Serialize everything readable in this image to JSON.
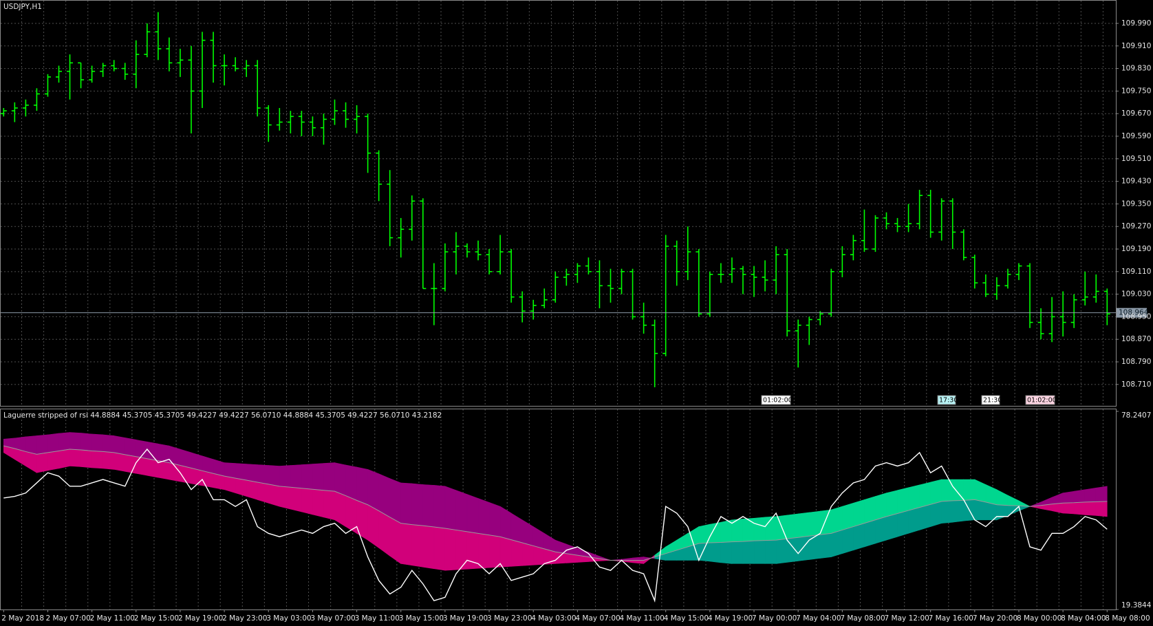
{
  "chart_data": [
    {
      "type": "ohlc",
      "title": "USDJPY,H1",
      "categories": [
        "2 May 2018",
        null,
        null,
        null,
        "2 May 07:00",
        null,
        null,
        null,
        "2 May 11:00",
        null,
        null,
        null,
        "2 May 15:00",
        null,
        null,
        null,
        "2 May 19:00",
        null,
        null,
        null,
        "2 May 23:00",
        null,
        null,
        null,
        "3 May 03:00",
        null,
        null,
        null,
        "3 May 07:00",
        null,
        null,
        null,
        "3 May 11:00",
        null,
        null,
        null,
        "3 May 15:00",
        null,
        null,
        null,
        "3 May 19:00",
        null,
        null,
        null,
        "3 May 23:00",
        null,
        null,
        null,
        "4 May 03:00",
        null,
        null,
        null,
        "4 May 07:00",
        null,
        null,
        null,
        "4 May 11:00",
        null,
        null,
        null,
        "4 May 15:00",
        null,
        null,
        null,
        "4 May 19:00",
        null,
        null,
        null,
        "7 May 00:00",
        null,
        null,
        null,
        "7 May 04:00",
        null,
        null,
        null,
        "7 May 08:00",
        null,
        null,
        null,
        "7 May 12:00",
        null,
        null,
        null,
        "7 May 16:00",
        null,
        null,
        null,
        "7 May 20:00",
        null,
        null,
        null,
        "8 May 00:00",
        null,
        null,
        null,
        "8 May 04:00",
        null,
        null,
        null,
        "8 May 08:00"
      ],
      "open": [
        109.67,
        109.68,
        109.69,
        109.7,
        109.74,
        109.8,
        109.82,
        109.85,
        109.79,
        109.82,
        109.84,
        109.83,
        109.81,
        109.88,
        109.96,
        109.9,
        109.85,
        109.86,
        109.75,
        109.93,
        109.84,
        109.84,
        109.83,
        109.84,
        109.69,
        109.63,
        109.64,
        109.66,
        109.64,
        109.62,
        109.65,
        109.68,
        109.65,
        109.66,
        109.53,
        109.42,
        109.23,
        109.26,
        109.36,
        109.05,
        109.05,
        109.18,
        109.2,
        109.18,
        109.17,
        109.11,
        109.18,
        109.02,
        108.97,
        108.99,
        109.01,
        109.09,
        109.1,
        109.13,
        109.11,
        109.06,
        109.05,
        109.11,
        108.95,
        108.92,
        108.82,
        109.2,
        109.11,
        109.18,
        108.96,
        109.1,
        109.1,
        109.12,
        109.1,
        109.09,
        109.08,
        109.17,
        108.9,
        108.92,
        108.94,
        108.96,
        109.11,
        109.17,
        109.22,
        109.19,
        109.3,
        109.28,
        109.27,
        109.28,
        109.38,
        109.25,
        109.36,
        109.25,
        109.16,
        109.07,
        109.03,
        109.06,
        109.1,
        109.13,
        108.93,
        108.89,
        108.95,
        108.93,
        109.01,
        109.02,
        109.04
      ],
      "high": [
        109.69,
        109.71,
        109.72,
        109.76,
        109.81,
        109.84,
        109.88,
        109.85,
        109.84,
        109.85,
        109.86,
        109.85,
        109.93,
        109.99,
        110.03,
        109.94,
        109.9,
        109.91,
        109.96,
        109.96,
        109.88,
        109.87,
        109.86,
        109.86,
        109.7,
        109.69,
        109.68,
        109.68,
        109.66,
        109.67,
        109.72,
        109.71,
        109.7,
        109.67,
        109.54,
        109.47,
        109.3,
        109.38,
        109.37,
        109.14,
        109.21,
        109.25,
        109.21,
        109.22,
        109.19,
        109.24,
        109.19,
        109.04,
        109.01,
        109.05,
        109.11,
        109.12,
        109.14,
        109.16,
        109.15,
        109.12,
        109.12,
        109.12,
        109.0,
        108.94,
        109.24,
        109.22,
        109.27,
        109.19,
        109.11,
        109.14,
        109.16,
        109.13,
        109.13,
        109.15,
        109.2,
        109.19,
        108.94,
        108.95,
        108.97,
        109.12,
        109.2,
        109.24,
        109.33,
        109.31,
        109.32,
        109.3,
        109.35,
        109.4,
        109.4,
        109.37,
        109.37,
        109.26,
        109.17,
        109.1,
        109.09,
        109.12,
        109.14,
        109.14,
        108.98,
        109.02,
        109.04,
        109.03,
        109.11,
        109.1,
        109.05
      ],
      "low": [
        109.66,
        109.64,
        109.66,
        109.68,
        109.73,
        109.78,
        109.72,
        109.76,
        109.78,
        109.8,
        109.82,
        109.79,
        109.76,
        109.87,
        109.86,
        109.82,
        109.8,
        109.6,
        109.69,
        109.78,
        109.77,
        109.82,
        109.8,
        109.66,
        109.57,
        109.61,
        109.6,
        109.59,
        109.59,
        109.56,
        109.63,
        109.62,
        109.6,
        109.46,
        109.36,
        109.2,
        109.16,
        109.22,
        109.05,
        108.92,
        109.04,
        109.1,
        109.16,
        109.15,
        109.1,
        109.1,
        109.0,
        108.93,
        108.94,
        108.98,
        109.0,
        109.06,
        109.07,
        109.1,
        108.98,
        109.0,
        109.03,
        108.94,
        108.89,
        108.7,
        108.81,
        109.06,
        109.08,
        108.95,
        108.95,
        109.07,
        109.07,
        109.03,
        109.02,
        109.04,
        109.03,
        108.88,
        108.77,
        108.85,
        108.92,
        108.95,
        109.09,
        109.15,
        109.18,
        109.18,
        109.26,
        109.25,
        109.25,
        109.26,
        109.23,
        109.22,
        109.19,
        109.15,
        109.05,
        109.02,
        109.01,
        109.05,
        109.08,
        108.91,
        108.87,
        108.86,
        108.88,
        108.91,
        108.99,
        109.0,
        108.92
      ],
      "close": [
        109.68,
        109.69,
        109.7,
        109.74,
        109.8,
        109.82,
        109.85,
        109.79,
        109.82,
        109.84,
        109.83,
        109.81,
        109.88,
        109.96,
        109.9,
        109.85,
        109.86,
        109.75,
        109.93,
        109.84,
        109.84,
        109.83,
        109.84,
        109.69,
        109.63,
        109.64,
        109.66,
        109.64,
        109.62,
        109.65,
        109.68,
        109.65,
        109.66,
        109.53,
        109.42,
        109.23,
        109.26,
        109.36,
        109.05,
        109.05,
        109.18,
        109.2,
        109.18,
        109.17,
        109.11,
        109.18,
        109.02,
        108.97,
        108.99,
        109.01,
        109.09,
        109.1,
        109.13,
        109.11,
        109.06,
        109.05,
        109.11,
        108.95,
        108.92,
        108.82,
        109.2,
        109.11,
        109.18,
        108.96,
        109.1,
        109.1,
        109.12,
        109.1,
        109.09,
        109.08,
        109.17,
        108.9,
        108.92,
        108.94,
        108.96,
        109.11,
        109.17,
        109.22,
        109.19,
        109.3,
        109.28,
        109.27,
        109.28,
        109.38,
        109.25,
        109.36,
        109.25,
        109.16,
        109.07,
        109.03,
        109.06,
        109.1,
        109.13,
        108.93,
        108.89,
        108.95,
        108.93,
        109.01,
        109.02,
        109.04,
        108.96
      ],
      "color": "#00ff00",
      "ylim": [
        108.634,
        110.068
      ],
      "yticks": [
        {
          "value": 109.99,
          "label": "109.990"
        },
        {
          "value": 109.91,
          "label": "109.910"
        },
        {
          "value": 109.83,
          "label": "109.830"
        },
        {
          "value": 109.75,
          "label": "109.750"
        },
        {
          "value": 109.67,
          "label": "109.670"
        },
        {
          "value": 109.59,
          "label": "109.590"
        },
        {
          "value": 109.51,
          "label": "109.510"
        },
        {
          "value": 109.43,
          "label": "109.430"
        },
        {
          "value": 109.35,
          "label": "109.350"
        },
        {
          "value": 109.27,
          "label": "109.270"
        },
        {
          "value": 109.19,
          "label": "109.190"
        },
        {
          "value": 109.11,
          "label": "109.110"
        },
        {
          "value": 109.03,
          "label": "109.030"
        },
        {
          "value": 108.95,
          "label": "108.950"
        },
        {
          "value": 108.87,
          "label": "108.870"
        },
        {
          "value": 108.79,
          "label": "108.790"
        },
        {
          "value": 108.71,
          "label": "108.710"
        }
      ],
      "grid": true,
      "current_price": 108.964,
      "current_price_color": "#8c9aa8",
      "time_markers": [
        "01:02:00",
        "17:30",
        "21:30",
        "01:02:00"
      ]
    },
    {
      "type": "ribbon",
      "title": "Laguerre stripped of rsi 44.8884 45.3705 45.3705 49.4227 49.4227 56.0710 44.8884 45.3705 49.4227 56.0710 43.2182",
      "series": [
        {
          "values": [
            66,
            64,
            62,
            60,
            60.7,
            61.3,
            62,
            61.8,
            61.5,
            61.3,
            61,
            60.4,
            59.8,
            59.2,
            58.6,
            58,
            57.4,
            56.8,
            56.2,
            55.6,
            55,
            54,
            53,
            52,
            51,
            50,
            49.2,
            48.4,
            47.6,
            46.8,
            46,
            44,
            42,
            40,
            37.7,
            35.3,
            33,
            32.5,
            32,
            31.5,
            31,
            31.2,
            31.4,
            31.6,
            31.8,
            32,
            32.2,
            32.4,
            32.6,
            32.8,
            33,
            33.2,
            33.4,
            33.6,
            33.8,
            34,
            33.7,
            33.3,
            33,
            35.5,
            38,
            40,
            42,
            44,
            44.7,
            45.3,
            46,
            46.3,
            46.5,
            46.8,
            47,
            47.4,
            47.8,
            48.2,
            48.6,
            49,
            50,
            51,
            52,
            53,
            54,
            54.8,
            55.6,
            56.4,
            57.2,
            58,
            58,
            58,
            58,
            56.5,
            55,
            53.3,
            51.7,
            50,
            49.3,
            48.7,
            48,
            47.8,
            47.5,
            47.3,
            47
          ]
        },
        {
          "color": "#9a9a9a",
          "values": [
            68,
            67.2,
            66.3,
            65.5,
            66,
            66.5,
            67,
            66.8,
            66.5,
            66.3,
            66,
            65.4,
            64.8,
            64.2,
            63.6,
            63,
            62.2,
            61.4,
            60.6,
            59.8,
            59,
            58.4,
            57.8,
            57.2,
            56.6,
            56,
            55.7,
            55.4,
            55.1,
            54.8,
            54.5,
            53.2,
            51.8,
            50.5,
            48.7,
            46.8,
            45,
            44.6,
            44.3,
            43.9,
            43.5,
            43,
            42.5,
            42,
            41.5,
            41,
            40.1,
            39.2,
            38.3,
            37.4,
            36.5,
            36,
            35.5,
            35,
            34.5,
            34,
            34,
            34,
            34,
            35,
            36,
            37,
            38,
            39,
            39.2,
            39.3,
            39.5,
            39.6,
            39.8,
            39.9,
            40,
            40.4,
            40.8,
            41.2,
            41.6,
            42,
            43,
            44,
            45,
            46,
            47,
            47.9,
            48.8,
            49.7,
            50.6,
            51.5,
            51.7,
            51.8,
            52,
            51.3,
            50.5,
            50.3,
            50.2,
            50,
            50.3,
            50.7,
            51,
            51.1,
            51.3,
            51.4,
            51.5
          ]
        },
        {
          "values": [
            70,
            70.3,
            70.7,
            71,
            71.3,
            71.7,
            72,
            71.8,
            71.5,
            71.3,
            71,
            70.4,
            69.8,
            69.2,
            68.6,
            68,
            67,
            66,
            65,
            64,
            63,
            62.8,
            62.6,
            62.4,
            62.2,
            62,
            62.2,
            62.4,
            62.6,
            62.8,
            63,
            62.3,
            61.7,
            61,
            59.7,
            58.3,
            57,
            56.8,
            56.5,
            56.3,
            56,
            54.8,
            53.6,
            52.4,
            51.2,
            50,
            48,
            46,
            44,
            42,
            40,
            38.8,
            37.6,
            36.4,
            35.2,
            34,
            34.3,
            34.7,
            35,
            34.5,
            34,
            34,
            34,
            34,
            33.7,
            33.3,
            33,
            33,
            33,
            33,
            33,
            33.4,
            33.8,
            34.2,
            34.6,
            35,
            36,
            37,
            38,
            39,
            40,
            41,
            42,
            43,
            44,
            45,
            45.3,
            45.7,
            46,
            46,
            46,
            47.3,
            48.7,
            50,
            51.3,
            52.7,
            54,
            54.5,
            55,
            55.5,
            56
          ]
        },
        {
          "color": "#ffffff",
          "values": [
            52.5,
            53,
            54,
            57,
            60,
            59,
            56,
            56,
            57,
            58,
            57,
            56,
            63,
            67,
            63,
            64,
            60,
            55,
            58,
            52,
            52,
            50,
            52,
            44,
            42,
            41,
            42,
            43,
            42,
            44,
            45,
            42,
            44,
            35,
            28,
            24,
            26,
            31,
            27,
            22,
            23,
            30,
            34,
            33,
            30,
            33,
            28,
            29,
            30,
            33,
            34,
            37,
            38,
            36,
            32,
            31,
            34,
            31,
            30,
            22,
            50,
            48,
            44,
            34,
            41,
            47,
            45,
            47,
            45,
            44,
            48,
            40,
            36,
            40,
            42,
            50,
            54,
            57,
            58,
            62,
            63,
            62,
            63,
            66,
            60,
            62,
            56,
            52,
            46,
            44,
            47,
            47,
            50,
            38,
            37,
            42,
            42,
            44,
            47,
            46,
            43.2182
          ]
        }
      ],
      "band_colors": [
        [
          "#00d68f",
          "#d1007a"
        ],
        [
          "#009c8c",
          "#97007e"
        ]
      ],
      "ylim": [
        19.3844,
        78.2407
      ],
      "yticks": [
        19.3844,
        78.2407
      ]
    }
  ]
}
